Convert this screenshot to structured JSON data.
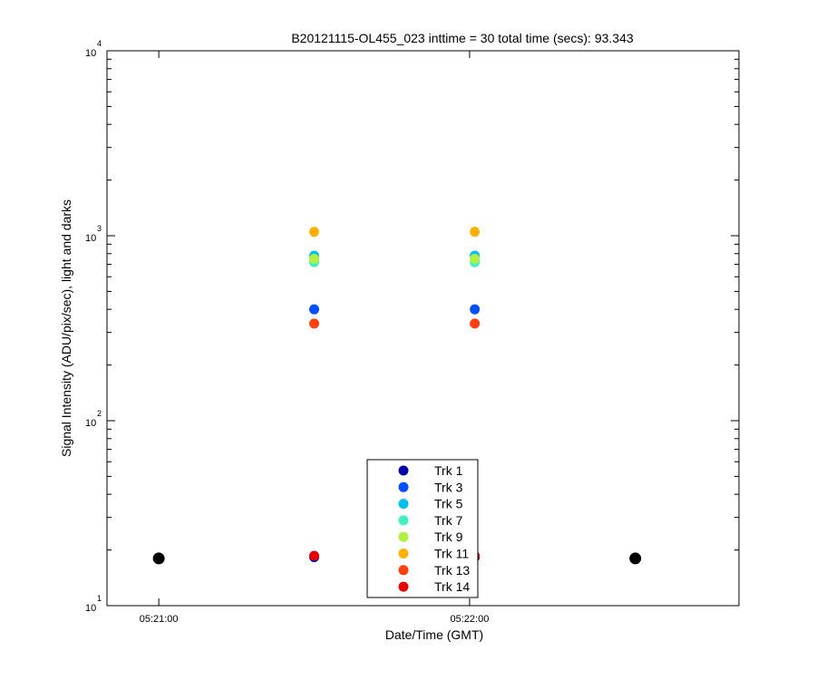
{
  "chart_data": {
    "type": "scatter",
    "title": "B20121115-OL455_023 inttime = 30 total time (secs): 93.343",
    "xlabel": "Date/Time (GMT)",
    "ylabel": "Signal Intensity (ADU/pix/sec), light and darks",
    "y_scale": "log",
    "ylim": [
      10,
      10000
    ],
    "xlim": [
      "05:20:50",
      "05:22:52"
    ],
    "x_ticks": [
      "05:21:00",
      "05:22:00"
    ],
    "y_ticks": [
      {
        "base": "10",
        "exp": "1"
      },
      {
        "base": "10",
        "exp": "2"
      },
      {
        "base": "10",
        "exp": "3"
      },
      {
        "base": "10",
        "exp": "4"
      }
    ],
    "grid": false,
    "legend_position": "bottom-center",
    "series": [
      {
        "name": "Trk 1",
        "color": "#0000a8",
        "x": [
          "05:21:30",
          "05:22:01"
        ],
        "y": [
          18.3,
          18.3
        ]
      },
      {
        "name": "Trk 3",
        "color": "#0050ff",
        "x": [
          "05:21:30",
          "05:22:01"
        ],
        "y": [
          400,
          400
        ]
      },
      {
        "name": "Trk 5",
        "color": "#00c0f0",
        "x": [
          "05:21:30",
          "05:22:01"
        ],
        "y": [
          780,
          780
        ]
      },
      {
        "name": "Trk 7",
        "color": "#40f0c0",
        "x": [
          "05:21:30",
          "05:22:01"
        ],
        "y": [
          720,
          720
        ]
      },
      {
        "name": "Trk 9",
        "color": "#b0f040",
        "x": [
          "05:21:30",
          "05:22:01"
        ],
        "y": [
          750,
          750
        ]
      },
      {
        "name": "Trk 11",
        "color": "#ffb000",
        "x": [
          "05:21:30",
          "05:22:01"
        ],
        "y": [
          1050,
          1050
        ]
      },
      {
        "name": "Trk 13",
        "color": "#ff4010",
        "x": [
          "05:21:30",
          "05:22:01"
        ],
        "y": [
          335,
          335
        ]
      },
      {
        "name": "Trk 14",
        "color": "#e80000",
        "x": [
          "05:21:30",
          "05:22:01"
        ],
        "y": [
          18.6,
          18.6
        ]
      }
    ],
    "dark_points": {
      "color": "#000000",
      "x": [
        "05:21:00",
        "05:22:32"
      ],
      "y": [
        18,
        18
      ]
    }
  }
}
